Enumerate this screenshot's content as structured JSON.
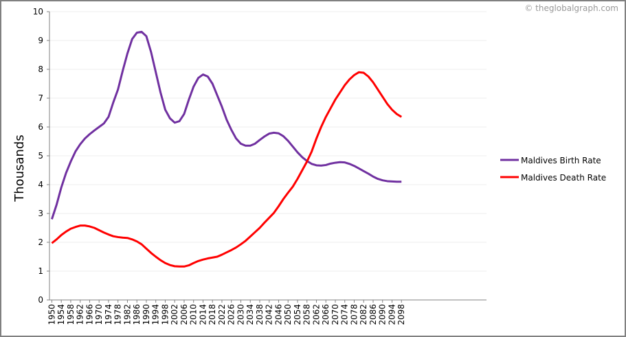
{
  "chart_data": {
    "type": "line",
    "watermark": "© theglobalgraph.com",
    "y_label": "Thousands",
    "x": [
      1950,
      1952,
      1954,
      1956,
      1958,
      1960,
      1962,
      1964,
      1966,
      1968,
      1970,
      1972,
      1974,
      1976,
      1978,
      1980,
      1982,
      1984,
      1986,
      1988,
      1990,
      1992,
      1994,
      1996,
      1998,
      2000,
      2002,
      2004,
      2006,
      2008,
      2010,
      2012,
      2014,
      2016,
      2018,
      2020,
      2022,
      2024,
      2026,
      2028,
      2030,
      2032,
      2034,
      2036,
      2038,
      2040,
      2042,
      2044,
      2046,
      2048,
      2050,
      2052,
      2054,
      2056,
      2058,
      2060,
      2062,
      2064,
      2066,
      2068,
      2070,
      2072,
      2074,
      2076,
      2078,
      2080,
      2082,
      2084,
      2086,
      2088,
      2090,
      2092,
      2094,
      2096,
      2098
    ],
    "series": [
      {
        "name": "Maldives Birth Rate",
        "color": "#7030a0",
        "values": [
          2.8,
          3.3,
          3.9,
          4.4,
          4.8,
          5.15,
          5.4,
          5.6,
          5.75,
          5.88,
          6.0,
          6.12,
          6.35,
          6.85,
          7.3,
          7.95,
          8.55,
          9.05,
          9.27,
          9.3,
          9.15,
          8.6,
          7.9,
          7.2,
          6.6,
          6.3,
          6.15,
          6.2,
          6.45,
          6.95,
          7.4,
          7.7,
          7.82,
          7.75,
          7.5,
          7.1,
          6.7,
          6.25,
          5.9,
          5.6,
          5.42,
          5.35,
          5.35,
          5.42,
          5.55,
          5.67,
          5.77,
          5.8,
          5.78,
          5.68,
          5.52,
          5.32,
          5.12,
          4.95,
          4.82,
          4.72,
          4.67,
          4.66,
          4.68,
          4.73,
          4.76,
          4.78,
          4.77,
          4.72,
          4.65,
          4.56,
          4.47,
          4.38,
          4.28,
          4.2,
          4.15,
          4.12,
          4.11,
          4.1,
          4.1
        ]
      },
      {
        "name": "Maldives Death Rate",
        "color": "#ff0000",
        "values": [
          1.97,
          2.1,
          2.25,
          2.37,
          2.47,
          2.53,
          2.58,
          2.58,
          2.55,
          2.5,
          2.42,
          2.34,
          2.27,
          2.21,
          2.18,
          2.16,
          2.15,
          2.1,
          2.03,
          1.93,
          1.78,
          1.63,
          1.5,
          1.38,
          1.28,
          1.21,
          1.17,
          1.16,
          1.16,
          1.2,
          1.28,
          1.35,
          1.4,
          1.44,
          1.47,
          1.5,
          1.57,
          1.65,
          1.73,
          1.82,
          1.93,
          2.05,
          2.2,
          2.35,
          2.5,
          2.68,
          2.85,
          3.02,
          3.25,
          3.5,
          3.72,
          3.93,
          4.2,
          4.5,
          4.8,
          5.15,
          5.6,
          6.0,
          6.35,
          6.65,
          6.95,
          7.2,
          7.45,
          7.65,
          7.8,
          7.9,
          7.88,
          7.75,
          7.55,
          7.3,
          7.05,
          6.8,
          6.6,
          6.45,
          6.35
        ]
      }
    ],
    "xlim": [
      1949,
      2134
    ],
    "xticks": [
      1950,
      1954,
      1958,
      1962,
      1966,
      1970,
      1974,
      1978,
      1982,
      1986,
      1990,
      1994,
      1998,
      2002,
      2006,
      2010,
      2014,
      2018,
      2022,
      2026,
      2030,
      2034,
      2038,
      2042,
      2046,
      2050,
      2054,
      2058,
      2062,
      2066,
      2070,
      2074,
      2078,
      2082,
      2086,
      2090,
      2094,
      2098
    ],
    "ylim": [
      0,
      10
    ],
    "yticks": [
      0,
      1,
      2,
      3,
      4,
      5,
      6,
      7,
      8,
      9,
      10
    ],
    "grid": true,
    "legend": "right"
  }
}
